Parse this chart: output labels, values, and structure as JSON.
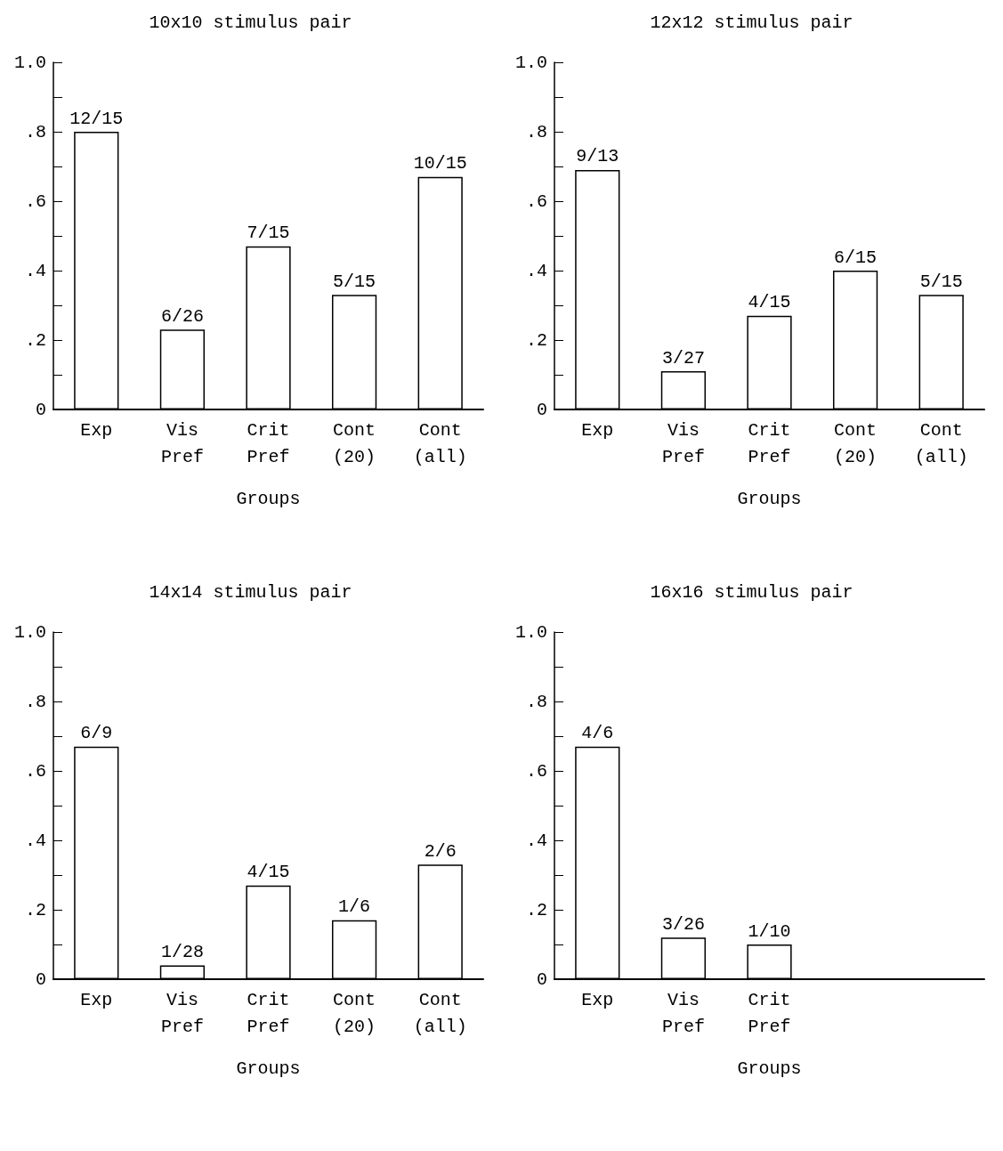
{
  "chart_data": [
    {
      "type": "bar",
      "title": "10x10 stimulus pair",
      "xlabel": "Groups",
      "categories": [
        "Exp",
        "Vis\nPref",
        "Crit\nPref",
        "Cont\n(20)",
        "Cont\n(all)"
      ],
      "values": [
        0.8,
        0.23,
        0.47,
        0.33,
        0.67
      ],
      "value_labels": [
        "12/15",
        "6/26",
        "7/15",
        "5/15",
        "10/15"
      ],
      "color": "#ffffff",
      "ylim": [
        0,
        1
      ],
      "yticks": [
        {
          "value": 0,
          "label": "0"
        },
        {
          "value": 0.1,
          "label": null
        },
        {
          "value": 0.2,
          "label": ".2"
        },
        {
          "value": 0.3,
          "label": null
        },
        {
          "value": 0.4,
          "label": ".4"
        },
        {
          "value": 0.5,
          "label": null
        },
        {
          "value": 0.6,
          "label": ".6"
        },
        {
          "value": 0.7,
          "label": null
        },
        {
          "value": 0.8,
          "label": ".8"
        },
        {
          "value": 0.9,
          "label": null
        },
        {
          "value": 1,
          "label": "1.0"
        }
      ],
      "grid": false
    },
    {
      "type": "bar",
      "title": "12x12 stimulus pair",
      "xlabel": "Groups",
      "categories": [
        "Exp",
        "Vis\nPref",
        "Crit\nPref",
        "Cont\n(20)",
        "Cont\n(all)"
      ],
      "values": [
        0.69,
        0.11,
        0.27,
        0.4,
        0.33
      ],
      "value_labels": [
        "9/13",
        "3/27",
        "4/15",
        "6/15",
        "5/15"
      ],
      "color": "#ffffff",
      "ylim": [
        0,
        1
      ],
      "yticks": [
        {
          "value": 0,
          "label": "0"
        },
        {
          "value": 0.1,
          "label": null
        },
        {
          "value": 0.2,
          "label": ".2"
        },
        {
          "value": 0.3,
          "label": null
        },
        {
          "value": 0.4,
          "label": ".4"
        },
        {
          "value": 0.5,
          "label": null
        },
        {
          "value": 0.6,
          "label": ".6"
        },
        {
          "value": 0.7,
          "label": null
        },
        {
          "value": 0.8,
          "label": ".8"
        },
        {
          "value": 0.9,
          "label": null
        },
        {
          "value": 1,
          "label": "1.0"
        }
      ],
      "grid": false
    },
    {
      "type": "bar",
      "title": "14x14 stimulus pair",
      "xlabel": "Groups",
      "categories": [
        "Exp",
        "Vis\nPref",
        "Crit\nPref",
        "Cont\n(20)",
        "Cont\n(all)"
      ],
      "values": [
        0.67,
        0.04,
        0.27,
        0.17,
        0.33
      ],
      "value_labels": [
        "6/9",
        "1/28",
        "4/15",
        "1/6",
        "2/6"
      ],
      "color": "#ffffff",
      "ylim": [
        0,
        1
      ],
      "yticks": [
        {
          "value": 0,
          "label": "0"
        },
        {
          "value": 0.1,
          "label": null
        },
        {
          "value": 0.2,
          "label": ".2"
        },
        {
          "value": 0.3,
          "label": null
        },
        {
          "value": 0.4,
          "label": ".4"
        },
        {
          "value": 0.5,
          "label": null
        },
        {
          "value": 0.6,
          "label": ".6"
        },
        {
          "value": 0.7,
          "label": null
        },
        {
          "value": 0.8,
          "label": ".8"
        },
        {
          "value": 0.9,
          "label": null
        },
        {
          "value": 1,
          "label": "1.0"
        }
      ],
      "grid": false
    },
    {
      "type": "bar",
      "title": "16x16 stimulus pair",
      "xlabel": "Groups",
      "categories": [
        "Exp",
        "Vis\nPref",
        "Crit\nPref",
        null,
        null
      ],
      "values": [
        0.67,
        0.12,
        0.1,
        null,
        null
      ],
      "value_labels": [
        "4/6",
        "3/26",
        "1/10",
        null,
        null
      ],
      "color": "#ffffff",
      "ylim": [
        0,
        1
      ],
      "yticks": [
        {
          "value": 0,
          "label": "0"
        },
        {
          "value": 0.1,
          "label": null
        },
        {
          "value": 0.2,
          "label": ".2"
        },
        {
          "value": 0.3,
          "label": null
        },
        {
          "value": 0.4,
          "label": ".4"
        },
        {
          "value": 0.5,
          "label": null
        },
        {
          "value": 0.6,
          "label": ".6"
        },
        {
          "value": 0.7,
          "label": null
        },
        {
          "value": 0.8,
          "label": ".8"
        },
        {
          "value": 0.9,
          "label": null
        },
        {
          "value": 1,
          "label": "1.0"
        }
      ],
      "grid": false
    }
  ]
}
